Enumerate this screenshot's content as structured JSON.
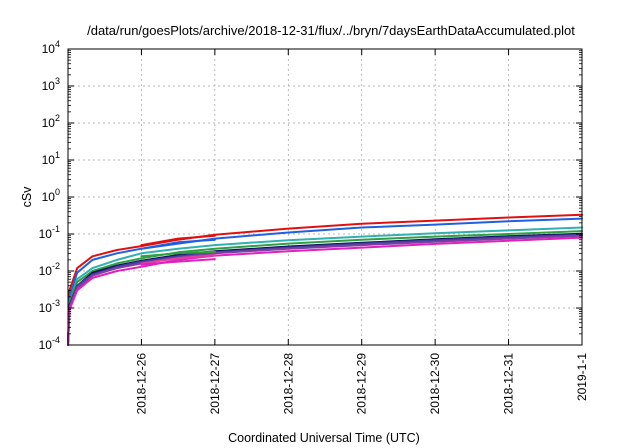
{
  "chart_data": {
    "type": "line",
    "title": "/data/run/goesPlots/archive/2018-12-31/flux/../bryn/7daysEarthDataAccumulated.plot",
    "xlabel": "Coordinated Universal Time (UTC)",
    "ylabel": "cSv",
    "y_scale": "log",
    "ylim": [
      0.0001,
      10000
    ],
    "y_ticks": [
      {
        "base": "10",
        "exp": "-4",
        "value": 0.0001
      },
      {
        "base": "10",
        "exp": "-3",
        "value": 0.001
      },
      {
        "base": "10",
        "exp": "-2",
        "value": 0.01
      },
      {
        "base": "10",
        "exp": "-1",
        "value": 0.1
      },
      {
        "base": "10",
        "exp": "0",
        "value": 1
      },
      {
        "base": "10",
        "exp": "1",
        "value": 10
      },
      {
        "base": "10",
        "exp": "2",
        "value": 100
      },
      {
        "base": "10",
        "exp": "3",
        "value": 1000
      },
      {
        "base": "10",
        "exp": "4",
        "value": 10000
      }
    ],
    "xlim": [
      "2018-12-25",
      "2019-01-01"
    ],
    "x_ticks": [
      "2018-12-26",
      "2018-12-27",
      "2018-12-28",
      "2018-12-29",
      "2018-12-30",
      "2018-12-31",
      "2019-1-1"
    ],
    "x_tick_dates": [
      "2018-12-26",
      "2018-12-27",
      "2018-12-28",
      "2018-12-29",
      "2018-12-30",
      "2018-12-31",
      "2019-01-01"
    ],
    "grid": true,
    "legend": "none",
    "series": [
      {
        "color": "#e01010",
        "points": [
          [
            "2018-12-25",
            0.0001
          ],
          [
            "2018-12-25 00:30",
            0.003
          ],
          [
            "2018-12-25 03:00",
            0.012
          ],
          [
            "2018-12-25 08:00",
            0.025
          ],
          [
            "2018-12-25 16:00",
            0.037
          ],
          [
            "2018-12-26",
            0.047
          ],
          [
            "2018-12-26 12:00",
            0.07
          ],
          [
            "2018-12-27",
            0.095
          ],
          [
            "2018-12-28",
            0.14
          ],
          [
            "2018-12-29",
            0.19
          ],
          [
            "2018-12-30",
            0.23
          ],
          [
            "2018-12-31",
            0.28
          ],
          [
            "2019-01-01",
            0.33
          ]
        ]
      },
      {
        "color": "#2060e0",
        "points": [
          [
            "2018-12-25",
            0.0001
          ],
          [
            "2018-12-25 00:30",
            0.002
          ],
          [
            "2018-12-25 03:00",
            0.009
          ],
          [
            "2018-12-25 08:00",
            0.02
          ],
          [
            "2018-12-25 16:00",
            0.03
          ],
          [
            "2018-12-26",
            0.04
          ],
          [
            "2018-12-26 12:00",
            0.055
          ],
          [
            "2018-12-27",
            0.075
          ],
          [
            "2018-12-28",
            0.11
          ],
          [
            "2018-12-29",
            0.15
          ],
          [
            "2018-12-30",
            0.18
          ],
          [
            "2018-12-31",
            0.22
          ],
          [
            "2019-01-01",
            0.26
          ]
        ]
      },
      {
        "color": "#30b0b0",
        "points": [
          [
            "2018-12-25",
            0.0001
          ],
          [
            "2018-12-25 00:30",
            0.0015
          ],
          [
            "2018-12-25 03:00",
            0.006
          ],
          [
            "2018-12-25 08:00",
            0.012
          ],
          [
            "2018-12-25 16:00",
            0.02
          ],
          [
            "2018-12-26",
            0.03
          ],
          [
            "2018-12-26 12:00",
            0.04
          ],
          [
            "2018-12-27",
            0.05
          ],
          [
            "2018-12-28",
            0.068
          ],
          [
            "2018-12-29",
            0.085
          ],
          [
            "2018-12-30",
            0.105
          ],
          [
            "2018-12-31",
            0.125
          ],
          [
            "2019-01-01",
            0.15
          ]
        ]
      },
      {
        "color": "#30a040",
        "points": [
          [
            "2018-12-25",
            0.0001
          ],
          [
            "2018-12-25 00:30",
            0.0015
          ],
          [
            "2018-12-25 03:00",
            0.005
          ],
          [
            "2018-12-25 08:00",
            0.01
          ],
          [
            "2018-12-25 16:00",
            0.016
          ],
          [
            "2018-12-26",
            0.022
          ],
          [
            "2018-12-26 12:00",
            0.032
          ],
          [
            "2018-12-27",
            0.04
          ],
          [
            "2018-12-28",
            0.055
          ],
          [
            "2018-12-29",
            0.07
          ],
          [
            "2018-12-30",
            0.085
          ],
          [
            "2018-12-31",
            0.1
          ],
          [
            "2019-01-01",
            0.12
          ]
        ]
      },
      {
        "color": "#101060",
        "points": [
          [
            "2018-12-25",
            0.0001
          ],
          [
            "2018-12-25 00:30",
            0.0012
          ],
          [
            "2018-12-25 03:00",
            0.004
          ],
          [
            "2018-12-25 08:00",
            0.009
          ],
          [
            "2018-12-25 16:00",
            0.014
          ],
          [
            "2018-12-26",
            0.019
          ],
          [
            "2018-12-26 12:00",
            0.027
          ],
          [
            "2018-12-27",
            0.034
          ],
          [
            "2018-12-28",
            0.046
          ],
          [
            "2018-12-29",
            0.058
          ],
          [
            "2018-12-30",
            0.072
          ],
          [
            "2018-12-31",
            0.087
          ],
          [
            "2019-01-01",
            0.102
          ]
        ]
      },
      {
        "color": "#4040a0",
        "points": [
          [
            "2018-12-25",
            0.0001
          ],
          [
            "2018-12-25 00:30",
            0.0011
          ],
          [
            "2018-12-25 03:00",
            0.004
          ],
          [
            "2018-12-25 08:00",
            0.008
          ],
          [
            "2018-12-25 16:00",
            0.013
          ],
          [
            "2018-12-26",
            0.018
          ],
          [
            "2018-12-26 12:00",
            0.025
          ],
          [
            "2018-12-27",
            0.032
          ],
          [
            "2018-12-28",
            0.043
          ],
          [
            "2018-12-29",
            0.055
          ],
          [
            "2018-12-30",
            0.068
          ],
          [
            "2018-12-31",
            0.082
          ],
          [
            "2019-01-01",
            0.095
          ]
        ]
      },
      {
        "color": "#8040a0",
        "points": [
          [
            "2018-12-25",
            0.0001
          ],
          [
            "2018-12-25 00:30",
            0.001
          ],
          [
            "2018-12-25 03:00",
            0.0035
          ],
          [
            "2018-12-25 08:00",
            0.0075
          ],
          [
            "2018-12-25 16:00",
            0.012
          ],
          [
            "2018-12-26",
            0.016
          ],
          [
            "2018-12-26 12:00",
            0.023
          ],
          [
            "2018-12-27",
            0.03
          ],
          [
            "2018-12-28",
            0.04
          ],
          [
            "2018-12-29",
            0.05
          ],
          [
            "2018-12-30",
            0.062
          ],
          [
            "2018-12-31",
            0.075
          ],
          [
            "2019-01-01",
            0.09
          ]
        ]
      },
      {
        "color": "#e020c0",
        "points": [
          [
            "2018-12-25",
            0.0001
          ],
          [
            "2018-12-25 00:30",
            0.0009
          ],
          [
            "2018-12-25 03:00",
            0.003
          ],
          [
            "2018-12-25 08:00",
            0.0065
          ],
          [
            "2018-12-25 16:00",
            0.01
          ],
          [
            "2018-12-26",
            0.013
          ],
          [
            "2018-12-26 12:00",
            0.02
          ],
          [
            "2018-12-27",
            0.026
          ],
          [
            "2018-12-28",
            0.034
          ],
          [
            "2018-12-29",
            0.043
          ],
          [
            "2018-12-30",
            0.054
          ],
          [
            "2018-12-31",
            0.066
          ],
          [
            "2019-01-01",
            0.08
          ]
        ]
      },
      {
        "color": "#e040a0",
        "points": [
          [
            "2018-12-26",
            0.016
          ],
          [
            "2018-12-26 12:00",
            0.022
          ],
          [
            "2018-12-27",
            0.027
          ]
        ]
      },
      {
        "color": "#e01010",
        "points": [
          [
            "2018-12-26",
            0.05
          ],
          [
            "2018-12-26 12:00",
            0.075
          ],
          [
            "2018-12-27",
            0.09
          ]
        ]
      },
      {
        "color": "#2060e0",
        "points": [
          [
            "2018-12-26",
            0.04
          ],
          [
            "2018-12-26 12:00",
            0.06
          ],
          [
            "2018-12-27",
            0.07
          ]
        ]
      },
      {
        "color": "#30a040",
        "points": [
          [
            "2018-12-26",
            0.025
          ],
          [
            "2018-12-26 12:00",
            0.03
          ],
          [
            "2018-12-27",
            0.033
          ]
        ]
      },
      {
        "color": "#e020c0",
        "points": [
          [
            "2018-12-26",
            0.015
          ],
          [
            "2018-12-26 12:00",
            0.018
          ],
          [
            "2018-12-27",
            0.021
          ]
        ]
      }
    ]
  }
}
